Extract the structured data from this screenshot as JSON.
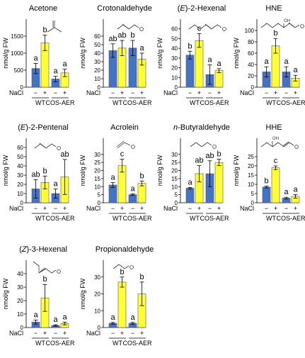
{
  "colors": {
    "wt_minus": "#4472c4",
    "plus": "#ffff33",
    "outline": "#000000",
    "error": "#000000"
  },
  "chart_data": [
    {
      "type": "bar",
      "title_parts": [
        {
          "t": "Acetone"
        }
      ],
      "ylabel": "nmol/g FW",
      "ylim": [
        0,
        2000
      ],
      "yticks": [
        0,
        500,
        1000,
        1500
      ],
      "categories": [
        "WT −",
        "WT +",
        "COS-AER −",
        "COS-AER +"
      ],
      "values": [
        550,
        1300,
        240,
        420
      ],
      "errors": [
        150,
        230,
        80,
        110
      ],
      "letters": [
        "a",
        "b",
        "a",
        "a"
      ],
      "nacl_label": "NaCl",
      "treatments": [
        "−",
        "+",
        "−",
        "+"
      ],
      "genotypes": [
        "WT",
        "COS-AER"
      ]
    },
    {
      "type": "bar",
      "title_parts": [
        {
          "t": "Crotonaldehyde"
        }
      ],
      "ylabel": "nmol/g FW",
      "ylim": [
        0,
        80
      ],
      "yticks": [
        0,
        10,
        20,
        30,
        40,
        50,
        60
      ],
      "categories": [
        "WT −",
        "WT +",
        "COS-AER −",
        "COS-AER +"
      ],
      "values": [
        43,
        46,
        46,
        33
      ],
      "errors": [
        8,
        9,
        9,
        7
      ],
      "letters": [
        "ab",
        "ab",
        "b",
        "a"
      ],
      "nacl_label": "NaCl",
      "treatments": [
        "−",
        "+",
        "−",
        "+"
      ],
      "genotypes": [
        "WT",
        "COS-AER"
      ]
    },
    {
      "type": "bar",
      "title_parts": [
        {
          "t": "("
        },
        {
          "t": "E",
          "i": true
        },
        {
          "t": ")-2-Hexenal"
        }
      ],
      "ylabel": "nmol/g FW",
      "ylim": [
        0,
        70
      ],
      "yticks": [
        0,
        10,
        20,
        30,
        40,
        50,
        60
      ],
      "categories": [
        "WT −",
        "WT +",
        "COS-AER −",
        "COS-AER +"
      ],
      "values": [
        33,
        48,
        13,
        17
      ],
      "errors": [
        4,
        7,
        10,
        2
      ],
      "letters": [
        "b",
        "c",
        "a",
        "a"
      ],
      "nacl_label": "NaCl",
      "treatments": [
        "−",
        "+",
        "−",
        "+"
      ],
      "genotypes": [
        "WT",
        "COS-AER"
      ]
    },
    {
      "type": "bar",
      "title_parts": [
        {
          "t": "HNE"
        }
      ],
      "ylabel": "nmol/g FW",
      "ylim": [
        0,
        120
      ],
      "yticks": [
        0,
        20,
        40,
        60,
        80,
        100
      ],
      "categories": [
        "WT −",
        "WT +",
        "COS-AER −",
        "COS-AER +"
      ],
      "values": [
        27,
        73,
        27,
        16
      ],
      "errors": [
        9,
        13,
        9,
        5
      ],
      "letters": [
        "a",
        "b",
        "a",
        "a"
      ],
      "nacl_label": "NaCl",
      "treatments": [
        "−",
        "+",
        "−",
        "+"
      ],
      "genotypes": [
        "WT",
        "COS-AER"
      ]
    },
    {
      "type": "bar",
      "title_parts": [
        {
          "t": "("
        },
        {
          "t": "E",
          "i": true
        },
        {
          "t": ")-2-Pentenal"
        }
      ],
      "ylabel": "nmol/g FW",
      "ylim": [
        0,
        70
      ],
      "yticks": [
        0,
        10,
        20,
        30,
        40,
        50,
        60
      ],
      "categories": [
        "WT −",
        "WT +",
        "COS-AER −",
        "COS-AER +"
      ],
      "values": [
        15,
        22,
        10,
        28
      ],
      "errors": [
        10,
        7,
        5,
        19
      ],
      "letters": [
        "ab",
        "b",
        "a",
        "ab"
      ],
      "nacl_label": "NaCl",
      "treatments": [
        "−",
        "+",
        "−",
        "+"
      ],
      "genotypes": [
        "WT",
        "COS-AER"
      ]
    },
    {
      "type": "bar",
      "title_parts": [
        {
          "t": "Acrolein"
        }
      ],
      "ylabel": "nmol/g FW",
      "ylim": [
        0,
        40
      ],
      "yticks": [
        0,
        5,
        10,
        15,
        20,
        25,
        30
      ],
      "categories": [
        "WT −",
        "WT +",
        "COS-AER −",
        "COS-AER +"
      ],
      "values": [
        11,
        23,
        5,
        12
      ],
      "errors": [
        1.5,
        4,
        0.5,
        1.5
      ],
      "letters": [
        "a",
        "c",
        "a",
        "b"
      ],
      "nacl_label": "NaCl",
      "treatments": [
        "−",
        "+",
        "−",
        "+"
      ],
      "genotypes": [
        "WT",
        "COS-AER"
      ]
    },
    {
      "type": "bar",
      "title_parts": [
        {
          "t": "n",
          "i": true
        },
        {
          "t": "-Butyraldehyde"
        }
      ],
      "ylabel": "nmol/g FW",
      "ylim": [
        0,
        40
      ],
      "yticks": [
        0,
        5,
        10,
        15,
        20,
        25,
        30
      ],
      "categories": [
        "WT −",
        "WT +",
        "COS-AER −",
        "COS-AER +"
      ],
      "values": [
        9,
        18,
        18,
        25
      ],
      "errors": [
        0.5,
        5,
        8,
        2
      ],
      "letters": [
        "a",
        "ab",
        "ab",
        "b"
      ],
      "nacl_label": "NaCl",
      "treatments": [
        "−",
        "+",
        "−",
        "+"
      ],
      "genotypes": [
        "WT",
        "COS-AER"
      ]
    },
    {
      "type": "bar",
      "title_parts": [
        {
          "t": "HHE"
        }
      ],
      "ylabel": "nmol/g FW",
      "ylim": [
        0,
        35
      ],
      "yticks": [
        0,
        5,
        10,
        15,
        20,
        25
      ],
      "categories": [
        "WT −",
        "WT +",
        "COS-AER −",
        "COS-AER +"
      ],
      "values": [
        8.5,
        19,
        2.5,
        3.5
      ],
      "errors": [
        0.5,
        1,
        0.5,
        1
      ],
      "letters": [
        "b",
        "c",
        "a",
        "a"
      ],
      "nacl_label": "NaCl",
      "treatments": [
        "−",
        "+",
        "−",
        "+"
      ],
      "genotypes": [
        "WT",
        "COS-AER"
      ]
    },
    {
      "type": "bar",
      "title_parts": [
        {
          "t": "("
        },
        {
          "t": "Z",
          "i": true
        },
        {
          "t": ")-3-Hexenal"
        }
      ],
      "ylabel": "nmol/g FW",
      "ylim": [
        0,
        50
      ],
      "yticks": [
        0,
        10,
        20,
        30,
        40
      ],
      "categories": [
        "WT −",
        "WT +",
        "COS-AER −",
        "COS-AER +"
      ],
      "values": [
        4,
        22,
        1.5,
        3
      ],
      "errors": [
        1.5,
        10,
        0.5,
        1
      ],
      "letters": [
        "a",
        "b",
        "a",
        "a"
      ],
      "nacl_label": "NaCl",
      "treatments": [
        "−",
        "+",
        "−",
        "+"
      ],
      "genotypes": [
        "WT",
        "COS-AER"
      ]
    },
    {
      "type": "bar",
      "title_parts": [
        {
          "t": "Propionaldehyde"
        }
      ],
      "ylabel": "nmol/g FW",
      "ylim": [
        0,
        40
      ],
      "yticks": [
        0,
        10,
        20,
        30
      ],
      "categories": [
        "WT −",
        "WT +",
        "COS-AER −",
        "COS-AER +"
      ],
      "values": [
        2.5,
        27,
        2.5,
        20
      ],
      "errors": [
        0.5,
        3,
        0.5,
        7
      ],
      "letters": [
        "a",
        "b",
        "a",
        "b"
      ],
      "nacl_label": "NaCl",
      "treatments": [
        "−",
        "+",
        "−",
        "+"
      ],
      "genotypes": [
        "WT",
        "COS-AER"
      ]
    }
  ]
}
